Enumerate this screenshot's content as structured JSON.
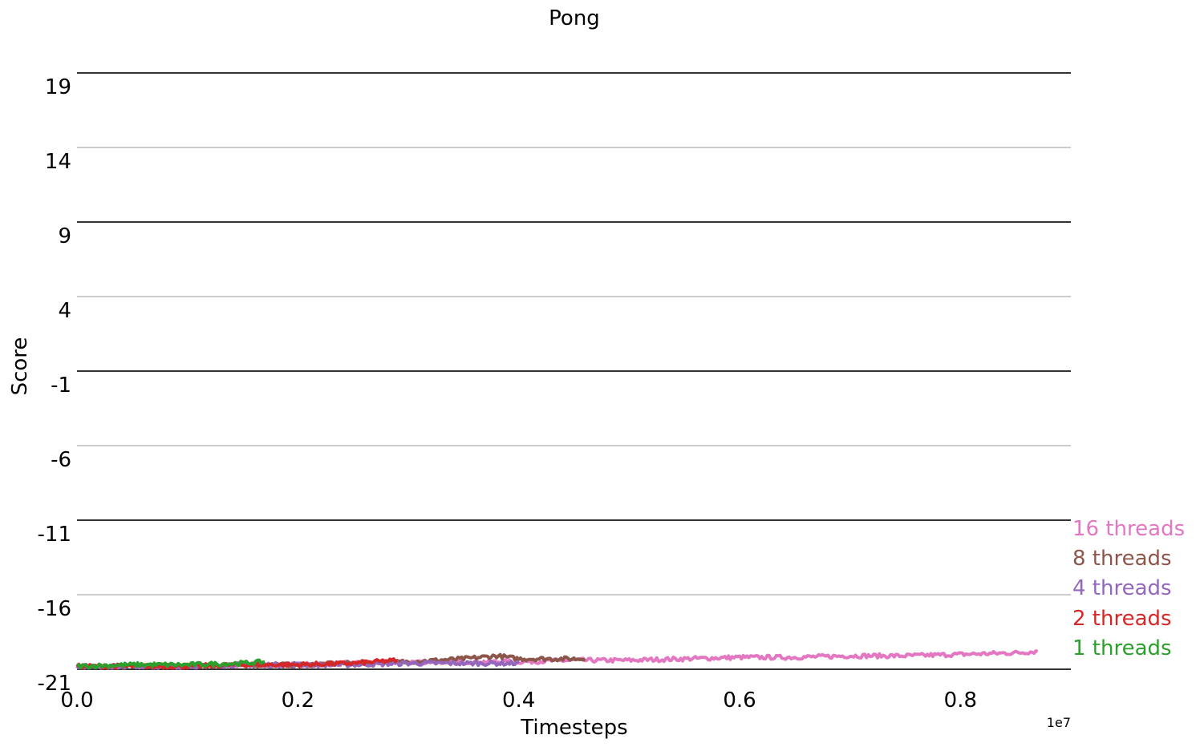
{
  "chart_data": {
    "type": "line",
    "title": "Pong",
    "xlabel": "Timesteps",
    "ylabel": "Score",
    "x_offset_label": "1e7",
    "xlim": [
      0.0,
      0.9
    ],
    "ylim": [
      -21,
      20.5
    ],
    "x_ticks": [
      0.0,
      0.2,
      0.4,
      0.6,
      0.8
    ],
    "x_tick_labels": [
      "0.0",
      "0.2",
      "0.4",
      "0.6",
      "0.8"
    ],
    "y_ticks": [
      19,
      14,
      9,
      4,
      -1,
      -6,
      -11,
      -16,
      -21
    ],
    "y_tick_labels": [
      "19",
      "14",
      "9",
      "4",
      "-1",
      "-6",
      "-11",
      "-16",
      "-21"
    ],
    "grid": true,
    "legend_placement": "right, inline labels",
    "series": [
      {
        "name": "16 threads",
        "color": "#e377c2",
        "x": [
          0.0,
          0.05,
          0.1,
          0.15,
          0.2,
          0.25,
          0.3,
          0.35,
          0.4,
          0.45,
          0.5,
          0.55,
          0.6,
          0.65,
          0.7,
          0.75,
          0.8,
          0.85,
          0.87
        ],
        "y": [
          -20.8,
          -20.8,
          -20.8,
          -20.7,
          -20.7,
          -20.6,
          -20.5,
          -20.5,
          -20.5,
          -20.4,
          -20.4,
          -20.3,
          -20.2,
          -20.2,
          -20.1,
          -20.1,
          -20.0,
          -19.9,
          -19.8
        ]
      },
      {
        "name": "8 threads",
        "color": "#8c564b",
        "x": [
          0.0,
          0.05,
          0.1,
          0.15,
          0.2,
          0.25,
          0.3,
          0.35,
          0.38,
          0.4,
          0.43,
          0.46
        ],
        "y": [
          -20.8,
          -20.8,
          -20.8,
          -20.7,
          -20.7,
          -20.6,
          -20.5,
          -20.3,
          -20.1,
          -20.3,
          -20.3,
          -20.3
        ]
      },
      {
        "name": "4 threads",
        "color": "#9467bd",
        "x": [
          0.0,
          0.05,
          0.1,
          0.15,
          0.2,
          0.25,
          0.3,
          0.35,
          0.4
        ],
        "y": [
          -20.8,
          -20.8,
          -20.8,
          -20.7,
          -20.7,
          -20.7,
          -20.6,
          -20.6,
          -20.6
        ]
      },
      {
        "name": "2 threads",
        "color": "#d62728",
        "x": [
          0.0,
          0.05,
          0.1,
          0.15,
          0.2,
          0.25,
          0.29
        ],
        "y": [
          -20.8,
          -20.8,
          -20.8,
          -20.7,
          -20.7,
          -20.6,
          -20.4
        ]
      },
      {
        "name": "1 threads",
        "color": "#2ca02c",
        "x": [
          0.0,
          0.05,
          0.1,
          0.15,
          0.17
        ],
        "y": [
          -20.8,
          -20.7,
          -20.7,
          -20.6,
          -20.5
        ]
      }
    ]
  }
}
